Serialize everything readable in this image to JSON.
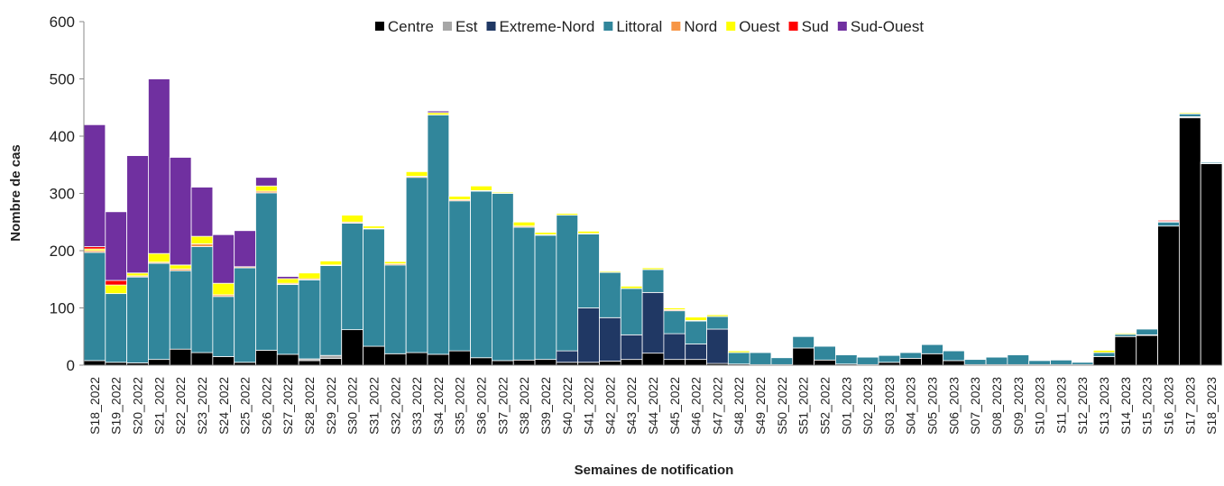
{
  "chart_data": {
    "type": "stacked_bar",
    "ylabel": "Nombre de cas",
    "xlabel": "Semaines de notification",
    "categories": [
      "S18_2022",
      "S19_2022",
      "S20_2022",
      "S21_2022",
      "S22_2022",
      "S23_2022",
      "S24_2022",
      "S25_2022",
      "S26_2022",
      "S27_2022",
      "S28_2022",
      "S29_2022",
      "S30_2022",
      "S31_2022",
      "S32_2022",
      "S33_2022",
      "S34_2022",
      "S35_2022",
      "S36_2022",
      "S37_2022",
      "S38_2022",
      "S39_2022",
      "S40_2022",
      "S41_2022",
      "S42_2022",
      "S43_2022",
      "S44_2022",
      "S45_2022",
      "S46_2022",
      "S47_2022",
      "S48_2022",
      "S49_2022",
      "S50_2022",
      "S51_2022",
      "S52_2022",
      "S01_2023",
      "S02_2023",
      "S03_2023",
      "S04_2023",
      "S05_2023",
      "S06_2023",
      "S07_2023",
      "S08_2023",
      "S09_2023",
      "S10_2023",
      "S11_2023",
      "S12_2023",
      "S13_2023",
      "S14_2023",
      "S15_2023",
      "S16_2023",
      "S17_2023",
      "S18_2023"
    ],
    "series": [
      {
        "name": "Centre",
        "color": "#000000",
        "values": [
          8,
          5,
          4,
          10,
          28,
          22,
          15,
          5,
          26,
          19,
          8,
          12,
          62,
          33,
          20,
          22,
          19,
          25,
          13,
          8,
          9,
          10,
          5,
          5,
          7,
          10,
          21,
          10,
          10,
          3,
          2,
          1,
          1,
          30,
          9,
          2,
          1,
          5,
          12,
          20,
          8,
          1,
          1,
          1,
          1,
          1,
          1,
          15,
          50,
          52,
          243,
          432,
          352
        ]
      },
      {
        "name": "Est",
        "color": "#a6a6a6",
        "values": [
          0,
          0,
          0,
          0,
          0,
          0,
          0,
          0,
          0,
          0,
          3,
          5,
          0,
          0,
          0,
          0,
          0,
          0,
          0,
          0,
          0,
          0,
          0,
          0,
          0,
          0,
          0,
          0,
          0,
          0,
          0,
          0,
          0,
          0,
          0,
          0,
          0,
          0,
          0,
          0,
          0,
          0,
          0,
          0,
          0,
          0,
          0,
          0,
          0,
          1,
          0,
          2,
          1
        ]
      },
      {
        "name": "Extreme-Nord",
        "color": "#203864",
        "values": [
          0,
          0,
          0,
          0,
          0,
          0,
          0,
          0,
          0,
          0,
          0,
          0,
          0,
          0,
          0,
          0,
          0,
          0,
          0,
          0,
          0,
          0,
          20,
          95,
          76,
          43,
          106,
          45,
          27,
          60,
          0,
          0,
          0,
          0,
          0,
          0,
          0,
          0,
          0,
          0,
          0,
          0,
          0,
          0,
          0,
          0,
          0,
          0,
          0,
          0,
          0,
          0,
          0
        ]
      },
      {
        "name": "Littoral",
        "color": "#31869b",
        "values": [
          189,
          120,
          150,
          168,
          137,
          185,
          105,
          165,
          275,
          122,
          138,
          157,
          186,
          205,
          155,
          306,
          418,
          262,
          291,
          292,
          232,
          217,
          237,
          129,
          79,
          81,
          40,
          40,
          40,
          22,
          20,
          21,
          12,
          20,
          24,
          16,
          13,
          12,
          10,
          16,
          17,
          9,
          13,
          17,
          7,
          8,
          4,
          7,
          4,
          10,
          7,
          5,
          2
        ]
      },
      {
        "name": "Nord",
        "color": "#f79646",
        "values": [
          3,
          0,
          2,
          2,
          3,
          5,
          3,
          2,
          3,
          2,
          2,
          1,
          2,
          1,
          2,
          2,
          0,
          2,
          1,
          0,
          2,
          1,
          0,
          1,
          0,
          0,
          0,
          2,
          1,
          0,
          0,
          0,
          0,
          0,
          0,
          0,
          0,
          0,
          0,
          0,
          0,
          0,
          0,
          0,
          0,
          0,
          0,
          0,
          0,
          0,
          1,
          0,
          0
        ]
      },
      {
        "name": "Ouest",
        "color": "#ffff00",
        "values": [
          3,
          15,
          5,
          15,
          7,
          13,
          20,
          0,
          9,
          8,
          10,
          7,
          12,
          4,
          4,
          8,
          4,
          6,
          8,
          2,
          7,
          4,
          3,
          4,
          2,
          4,
          3,
          3,
          6,
          3,
          3,
          0,
          0,
          0,
          0,
          0,
          0,
          0,
          0,
          0,
          0,
          0,
          0,
          0,
          0,
          0,
          0,
          4,
          2,
          0,
          0,
          2,
          0
        ]
      },
      {
        "name": "Sud",
        "color": "#ff0000",
        "values": [
          4,
          8,
          0,
          0,
          0,
          0,
          0,
          0,
          0,
          0,
          0,
          0,
          0,
          0,
          0,
          0,
          0,
          0,
          0,
          0,
          0,
          0,
          0,
          0,
          0,
          0,
          0,
          0,
          0,
          0,
          0,
          0,
          0,
          0,
          0,
          0,
          0,
          0,
          0,
          0,
          0,
          0,
          0,
          0,
          0,
          0,
          0,
          0,
          0,
          0,
          2,
          0,
          0
        ]
      },
      {
        "name": "Sud-Ouest",
        "color": "#7030a0",
        "values": [
          213,
          120,
          205,
          305,
          188,
          86,
          85,
          63,
          15,
          4,
          0,
          0,
          0,
          0,
          0,
          0,
          3,
          0,
          0,
          0,
          0,
          0,
          0,
          0,
          0,
          0,
          0,
          0,
          0,
          0,
          0,
          0,
          0,
          0,
          0,
          0,
          0,
          0,
          0,
          0,
          0,
          0,
          0,
          0,
          0,
          0,
          0,
          0,
          0,
          0,
          0,
          0,
          0
        ]
      }
    ],
    "ylim": [
      0,
      600
    ],
    "yticks": [
      0,
      100,
      200,
      300,
      400,
      500,
      600
    ],
    "grid": false,
    "legend": "top"
  }
}
